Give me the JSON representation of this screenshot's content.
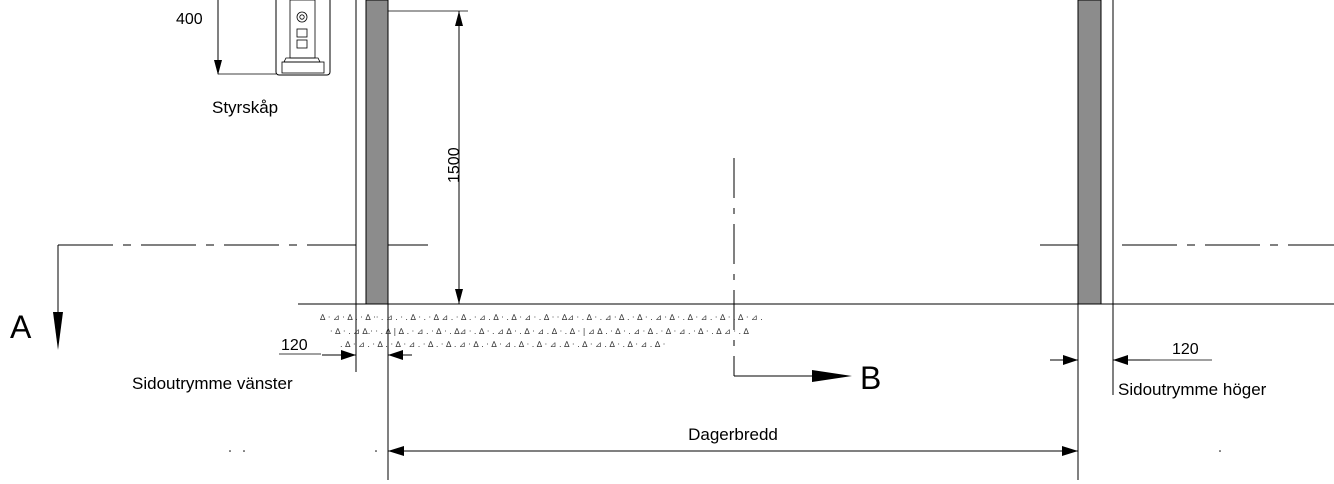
{
  "labels": {
    "dim_400": "400",
    "dim_1500": "1500",
    "control_cabinet": "Styrskåp",
    "section_a": "A",
    "section_b": "B",
    "dim_left_clearance": "120",
    "dim_right_clearance": "120",
    "left_clearance": "Sidoutrymme vänster",
    "right_clearance": "Sidoutrymme höger",
    "clear_width": "Dagerbredd"
  },
  "colors": {
    "line": "#000000",
    "post_fill": "#8c8c8c",
    "background": "#ffffff"
  }
}
